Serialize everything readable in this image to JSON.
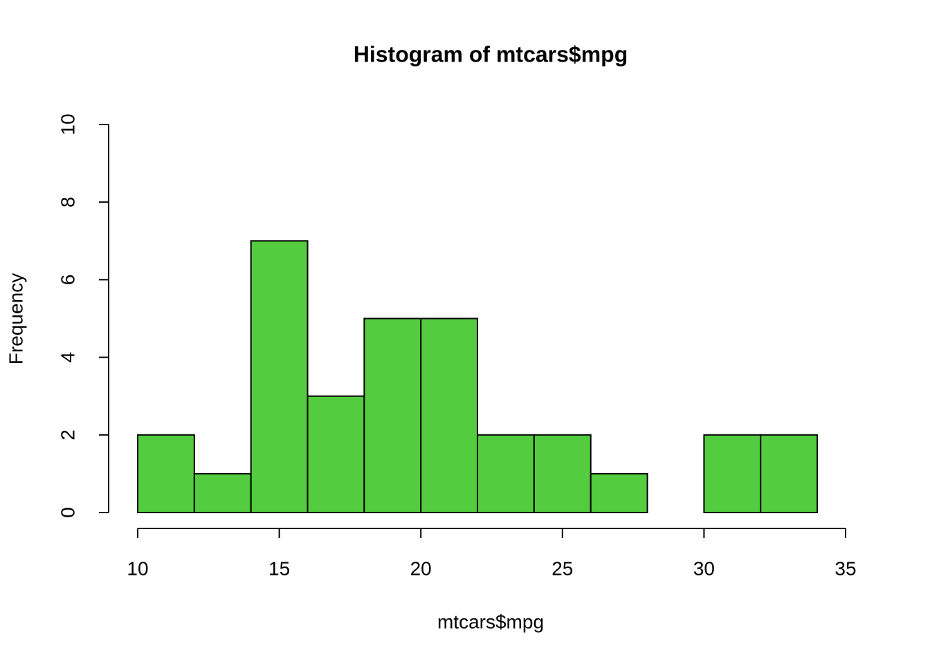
{
  "chart_data": {
    "type": "histogram",
    "title": "Histogram of mtcars$mpg",
    "x_label": "mtcars$mpg",
    "y_label": "Frequency",
    "bins": [
      10,
      12,
      14,
      16,
      18,
      20,
      22,
      24,
      26,
      28,
      30,
      32,
      34
    ],
    "values": [
      2,
      1,
      7,
      3,
      5,
      5,
      2,
      2,
      1,
      0,
      2,
      2
    ],
    "color": "#54cc3f",
    "xlim": [
      10,
      35
    ],
    "xticks": [
      10,
      15,
      20,
      25,
      30,
      35
    ],
    "ylim": [
      0,
      10
    ],
    "yticks": [
      0,
      2,
      4,
      6,
      8,
      10
    ],
    "grid": false
  }
}
